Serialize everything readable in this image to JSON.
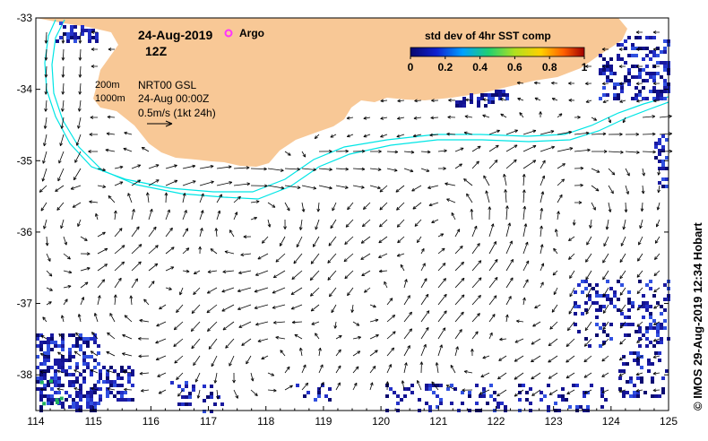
{
  "map": {
    "date": "24-Aug-2019",
    "time": "12Z",
    "argo_label": "Argo",
    "legend_title": "std dev of 4hr SST comp",
    "legend_ticks": [
      "0",
      "0.2",
      "0.4",
      "0.6",
      "0.8",
      "1"
    ],
    "legend_range": [
      0,
      1
    ],
    "isobath_labels": [
      "200m",
      "1000m"
    ],
    "product": "NRT00 GSL",
    "product_time": "24-Aug 00:00Z",
    "scale_label": "0.5m/s (1kt 24h)",
    "credit": "© IMOS 29-Aug-2019 12:34 Hobart",
    "lon_range": [
      114,
      125
    ],
    "lat_range": [
      -38.5,
      -33
    ],
    "lon_ticks": [
      "114",
      "115",
      "116",
      "117",
      "118",
      "119",
      "120",
      "121",
      "122",
      "123",
      "124",
      "125"
    ],
    "lat_ticks": [
      "-33",
      "-34",
      "-35",
      "-36",
      "-37",
      "-38"
    ],
    "colors": {
      "land": "#f8c896",
      "isobath": "#00e5e5",
      "argo": "#ff33ff",
      "sst_low": "#1a1aa0",
      "arrow": "#000000"
    }
  }
}
